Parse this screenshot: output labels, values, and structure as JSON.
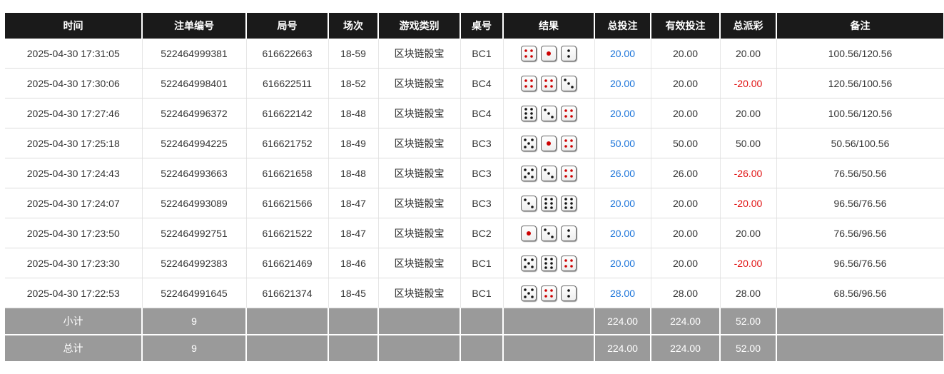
{
  "headers": [
    "时间",
    "注单编号",
    "局号",
    "场次",
    "游戏类别",
    "桌号",
    "结果",
    "总投注",
    "有效投注",
    "总派彩",
    "备注"
  ],
  "colors": {
    "header_bg": "#1a1a1a",
    "summary_bg": "#9a9a9a",
    "blue": "#1a73d9",
    "red": "#e01010"
  },
  "rows": [
    {
      "time": "2025-04-30 17:31:05",
      "bet_id": "522464999381",
      "round": "616622663",
      "session": "18-59",
      "game": "区块链骰宝",
      "table": "BC1",
      "dice": [
        4,
        1,
        2
      ],
      "total_bet": "20.00",
      "valid_bet": "20.00",
      "payout": "20.00",
      "note": "100.56/120.56"
    },
    {
      "time": "2025-04-30 17:30:06",
      "bet_id": "522464998401",
      "round": "616622511",
      "session": "18-52",
      "game": "区块链骰宝",
      "table": "BC4",
      "dice": [
        4,
        4,
        3
      ],
      "total_bet": "20.00",
      "valid_bet": "20.00",
      "payout": "-20.00",
      "note": "120.56/100.56"
    },
    {
      "time": "2025-04-30 17:27:46",
      "bet_id": "522464996372",
      "round": "616622142",
      "session": "18-48",
      "game": "区块链骰宝",
      "table": "BC4",
      "dice": [
        6,
        3,
        4
      ],
      "total_bet": "20.00",
      "valid_bet": "20.00",
      "payout": "20.00",
      "note": "100.56/120.56"
    },
    {
      "time": "2025-04-30 17:25:18",
      "bet_id": "522464994225",
      "round": "616621752",
      "session": "18-49",
      "game": "区块链骰宝",
      "table": "BC3",
      "dice": [
        5,
        1,
        4
      ],
      "total_bet": "50.00",
      "valid_bet": "50.00",
      "payout": "50.00",
      "note": "50.56/100.56"
    },
    {
      "time": "2025-04-30 17:24:43",
      "bet_id": "522464993663",
      "round": "616621658",
      "session": "18-48",
      "game": "区块链骰宝",
      "table": "BC3",
      "dice": [
        5,
        3,
        4
      ],
      "total_bet": "26.00",
      "valid_bet": "26.00",
      "payout": "-26.00",
      "note": "76.56/50.56"
    },
    {
      "time": "2025-04-30 17:24:07",
      "bet_id": "522464993089",
      "round": "616621566",
      "session": "18-47",
      "game": "区块链骰宝",
      "table": "BC3",
      "dice": [
        3,
        6,
        6
      ],
      "total_bet": "20.00",
      "valid_bet": "20.00",
      "payout": "-20.00",
      "note": "96.56/76.56"
    },
    {
      "time": "2025-04-30 17:23:50",
      "bet_id": "522464992751",
      "round": "616621522",
      "session": "18-47",
      "game": "区块链骰宝",
      "table": "BC2",
      "dice": [
        1,
        3,
        2
      ],
      "total_bet": "20.00",
      "valid_bet": "20.00",
      "payout": "20.00",
      "note": "76.56/96.56"
    },
    {
      "time": "2025-04-30 17:23:30",
      "bet_id": "522464992383",
      "round": "616621469",
      "session": "18-46",
      "game": "区块链骰宝",
      "table": "BC1",
      "dice": [
        5,
        6,
        4
      ],
      "total_bet": "20.00",
      "valid_bet": "20.00",
      "payout": "-20.00",
      "note": "96.56/76.56"
    },
    {
      "time": "2025-04-30 17:22:53",
      "bet_id": "522464991645",
      "round": "616621374",
      "session": "18-45",
      "game": "区块链骰宝",
      "table": "BC1",
      "dice": [
        5,
        4,
        2
      ],
      "total_bet": "28.00",
      "valid_bet": "28.00",
      "payout": "28.00",
      "note": "68.56/96.56"
    }
  ],
  "subtotal": {
    "label": "小计",
    "count": "9",
    "total_bet": "224.00",
    "valid_bet": "224.00",
    "payout": "52.00"
  },
  "total": {
    "label": "总计",
    "count": "9",
    "total_bet": "224.00",
    "valid_bet": "224.00",
    "payout": "52.00"
  }
}
